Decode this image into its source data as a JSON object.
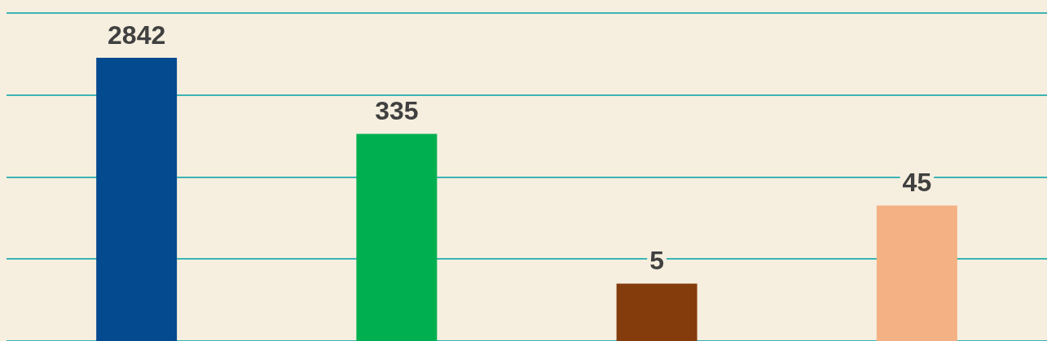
{
  "chart_data": {
    "type": "bar",
    "categories": [
      null,
      null,
      null,
      null
    ],
    "values": [
      2842,
      335,
      5,
      45
    ],
    "colors": [
      "#044a8f",
      "#00b050",
      "#843c0c",
      "#f4b183"
    ],
    "log": true,
    "ylim": [
      1,
      10000
    ],
    "yticks": [
      {
        "value": 1,
        "label": null
      },
      {
        "value": 10,
        "label": null
      },
      {
        "value": 100,
        "label": null
      },
      {
        "value": 1000,
        "label": null
      },
      {
        "value": 10000,
        "label": null
      }
    ],
    "tick_labels": false,
    "grid": "y",
    "data_labels": true,
    "legend": false
  }
}
